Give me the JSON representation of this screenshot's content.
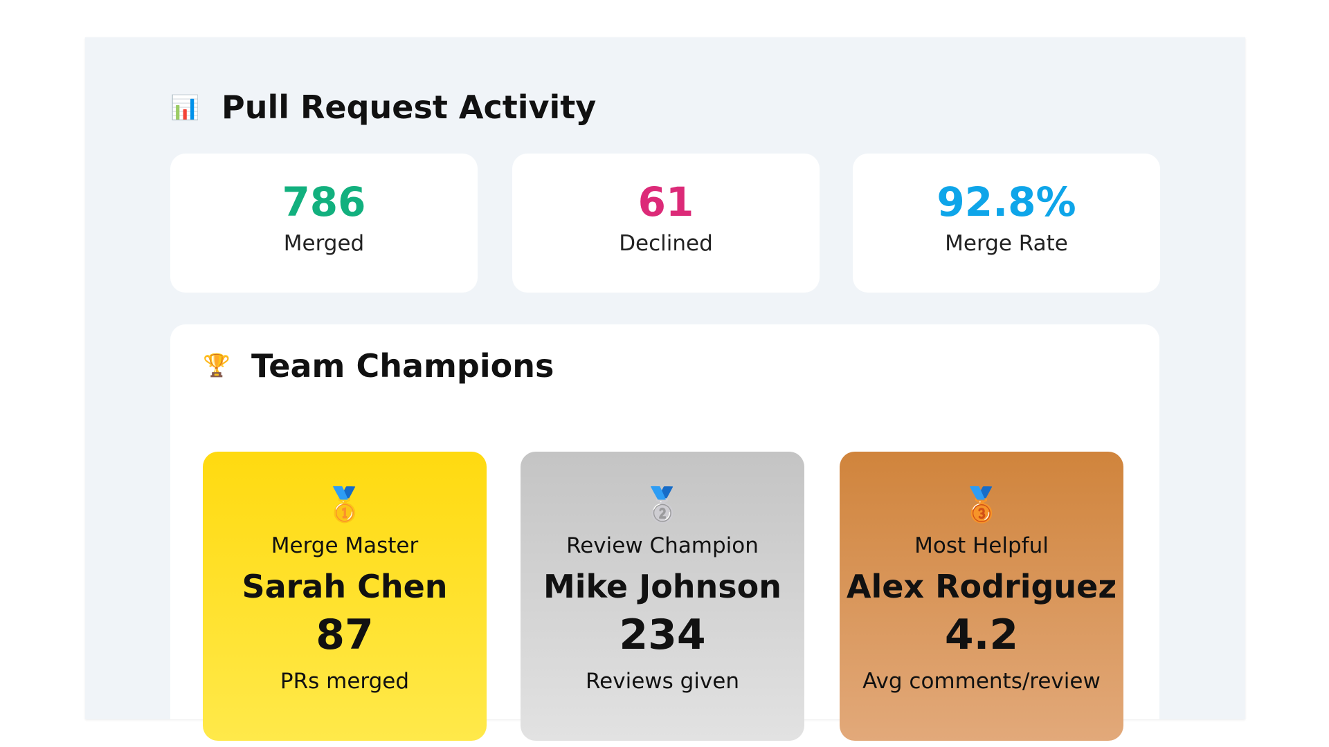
{
  "header": {
    "icon": "📊",
    "title": "Pull Request Activity"
  },
  "stats": [
    {
      "value": "786",
      "label": "Merged",
      "color": "#12b07e"
    },
    {
      "value": "61",
      "label": "Declined",
      "color": "#dc2a78"
    },
    {
      "value": "92.8%",
      "label": "Merge Rate",
      "color": "#0ea5e9"
    }
  ],
  "champions": {
    "icon": "🏆",
    "title": "Team Champions",
    "cards": [
      {
        "medal": "🥇",
        "role": "Merge Master",
        "name": "Sarah Chen",
        "value": "87",
        "label": "PRs merged"
      },
      {
        "medal": "🥈",
        "role": "Review Champion",
        "name": "Mike Johnson",
        "value": "234",
        "label": "Reviews given"
      },
      {
        "medal": "🥉",
        "role": "Most Helpful",
        "name": "Alex Rodriguez",
        "value": "4.2",
        "label": "Avg comments/review"
      }
    ]
  }
}
